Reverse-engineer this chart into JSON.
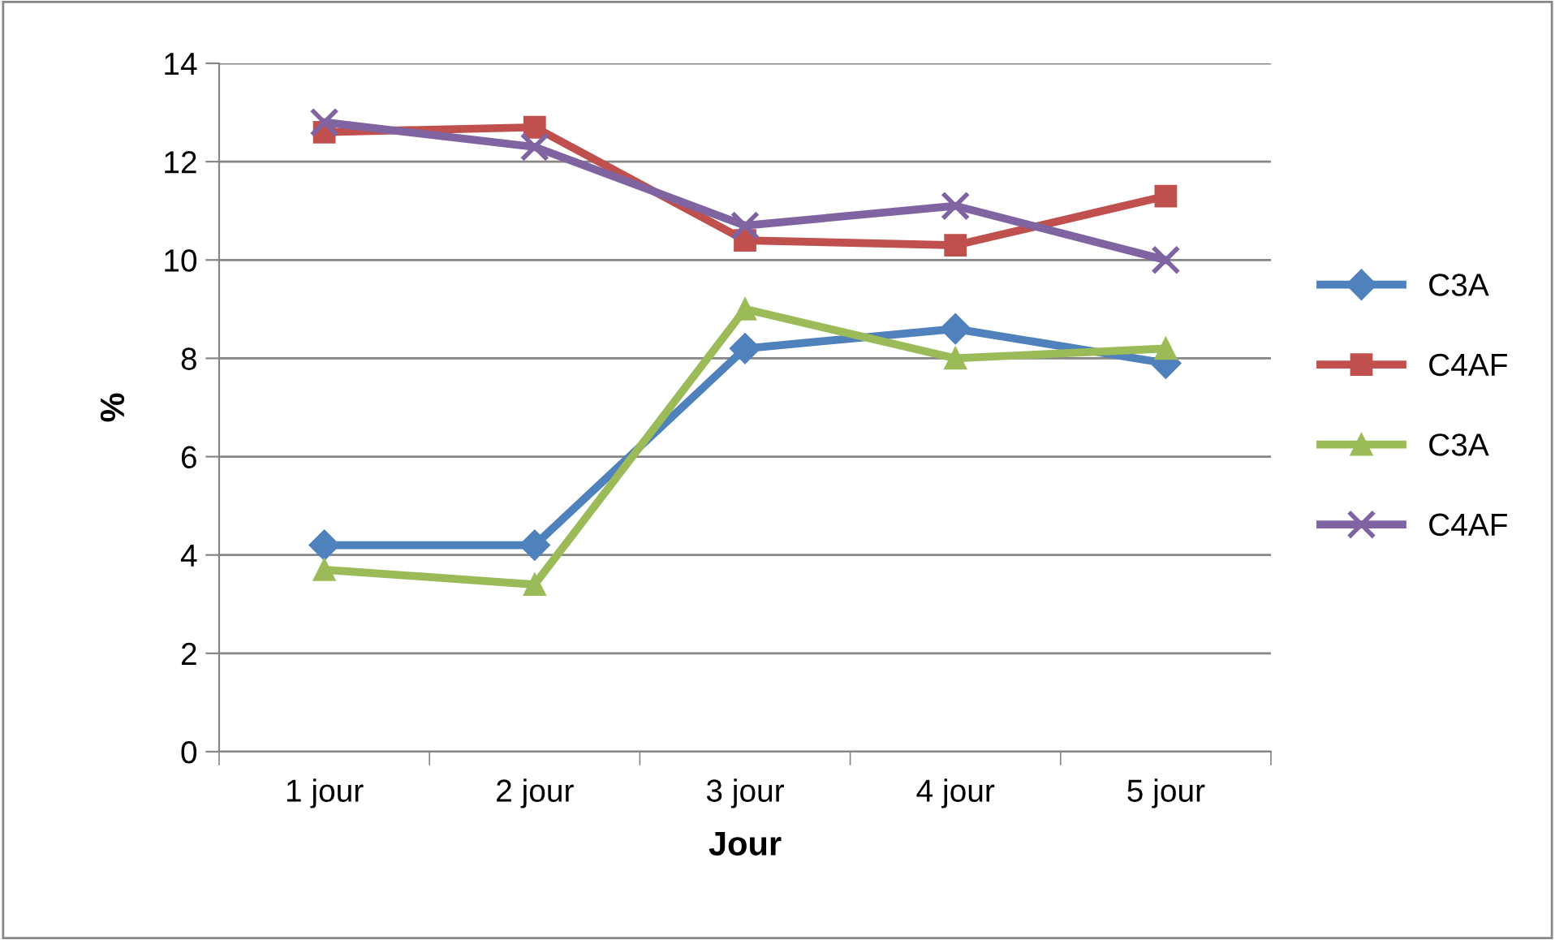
{
  "chart_data": {
    "type": "line",
    "xlabel": "Jour",
    "ylabel": "%",
    "categories": [
      "1 jour",
      "2 jour",
      "3 jour",
      "4 jour",
      "5 jour"
    ],
    "series": [
      {
        "name": "C3A",
        "color": "#4f81bd",
        "marker": "diamond",
        "values": [
          4.2,
          4.2,
          8.2,
          8.6,
          7.9
        ]
      },
      {
        "name": "C4AF",
        "color": "#c0504d",
        "marker": "square",
        "values": [
          12.6,
          12.7,
          10.4,
          10.3,
          11.3
        ]
      },
      {
        "name": "C3A",
        "color": "#9bbb59",
        "marker": "triangle",
        "values": [
          3.7,
          3.4,
          9.0,
          8.0,
          8.2
        ]
      },
      {
        "name": "C4AF",
        "color": "#8064a2",
        "marker": "cross",
        "values": [
          12.8,
          12.3,
          10.7,
          11.1,
          10.0
        ]
      }
    ],
    "ylim": [
      0,
      14
    ],
    "yticks": [
      0,
      2,
      4,
      6,
      8,
      10,
      12,
      14
    ],
    "grid": "y",
    "legend": "right",
    "line_style": "solid"
  }
}
